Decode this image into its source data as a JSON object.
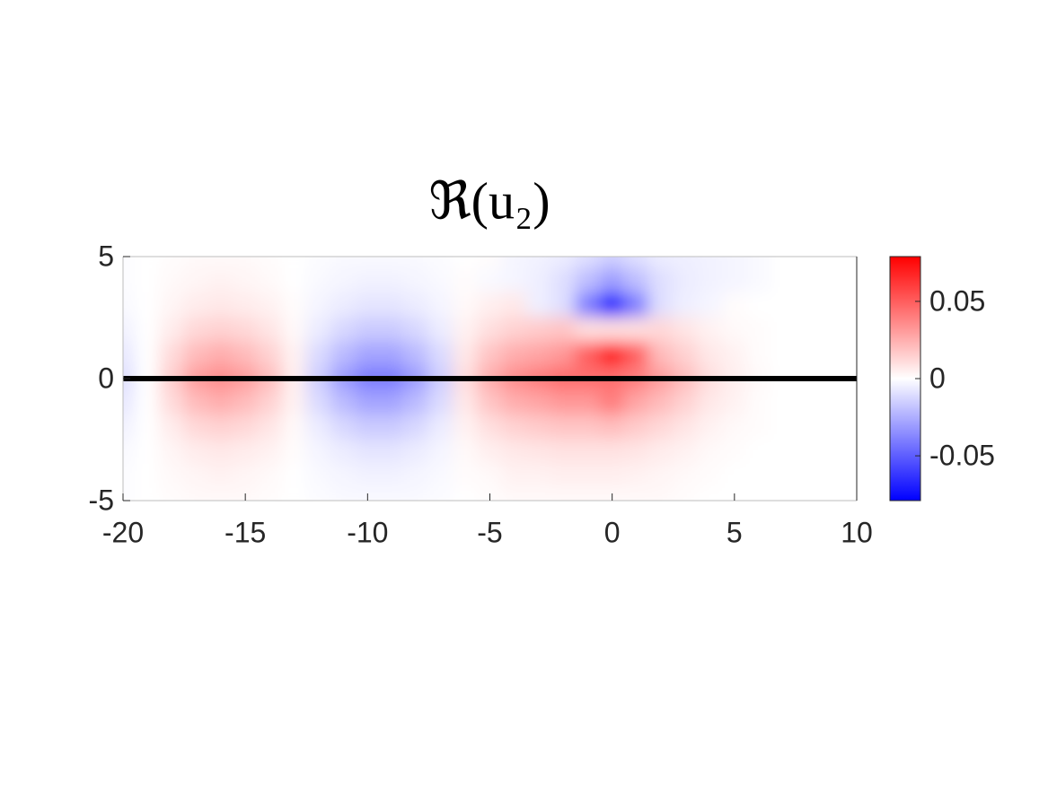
{
  "chart_data": {
    "type": "heatmap",
    "title": "ℜ(u₂)",
    "xlim": [
      -20,
      10
    ],
    "ylim": [
      -5,
      5
    ],
    "xticks": [
      -20,
      -15,
      -10,
      -5,
      0,
      5,
      10
    ],
    "yticks": [
      -5,
      0,
      5
    ],
    "clim": [
      -0.079,
      0.079
    ],
    "cticks": [
      -0.05,
      0,
      0.05
    ],
    "colormap": [
      "#0000ff",
      "#ffffff",
      "#ff0000"
    ],
    "hlines": [
      0
    ],
    "hline_color": "#000000",
    "x": [
      -20,
      -19,
      -18,
      -17,
      -16,
      -15,
      -14,
      -13,
      -12,
      -11,
      -10,
      -9,
      -8,
      -7,
      -6,
      -5,
      -4,
      -3,
      -2,
      -1,
      0,
      1,
      2,
      3,
      4,
      5,
      6,
      7,
      8,
      9,
      10
    ],
    "y": [
      5,
      4,
      3,
      2,
      1,
      0,
      -1,
      -2,
      -3,
      -4,
      -5
    ],
    "z": [
      [
        -0.001,
        0,
        0.001,
        0.002,
        0.002,
        0.002,
        0.001,
        0,
        -0.001,
        -0.002,
        -0.002,
        -0.002,
        -0.002,
        -0.001,
        0,
        0.001,
        -0.003,
        -0.004,
        -0.006,
        -0.01,
        -0.015,
        -0.01,
        -0.006,
        -0.005,
        -0.004,
        -0.003,
        -0.002,
        0,
        0,
        0,
        0
      ],
      [
        -0.001,
        0,
        0.002,
        0.003,
        0.004,
        0.003,
        0.002,
        0,
        -0.002,
        -0.003,
        -0.004,
        -0.004,
        -0.003,
        -0.002,
        0.001,
        -0.002,
        -0.003,
        -0.005,
        -0.01,
        -0.02,
        -0.03,
        -0.02,
        -0.01,
        -0.006,
        -0.004,
        -0.003,
        -0.002,
        0,
        0,
        0,
        0
      ],
      [
        -0.002,
        0,
        0.003,
        0.006,
        0.007,
        0.006,
        0.004,
        0.001,
        -0.003,
        -0.006,
        -0.008,
        -0.008,
        -0.006,
        -0.003,
        0.002,
        0.005,
        0.007,
        -0.005,
        -0.01,
        -0.04,
        -0.075,
        -0.04,
        -0.01,
        -0.005,
        -0.003,
        0.001,
        0,
        0,
        0,
        0,
        0
      ],
      [
        -0.004,
        0,
        0.006,
        0.012,
        0.014,
        0.012,
        0.008,
        0.002,
        -0.006,
        -0.012,
        -0.016,
        -0.016,
        -0.012,
        -0.006,
        0.004,
        0.01,
        0.014,
        0.016,
        0.018,
        0.01,
        0.01,
        0.01,
        0.012,
        0.008,
        0.004,
        0.002,
        0.001,
        0,
        0,
        0,
        0
      ],
      [
        -0.007,
        0,
        0.011,
        0.021,
        0.025,
        0.021,
        0.014,
        0.004,
        -0.011,
        -0.021,
        -0.028,
        -0.028,
        -0.021,
        -0.011,
        0.007,
        0.018,
        0.025,
        0.028,
        0.032,
        0.05,
        0.075,
        0.05,
        0.021,
        0.014,
        0.007,
        0.004,
        0.001,
        0,
        0,
        0,
        0
      ],
      [
        -0.01,
        0,
        0.015,
        0.03,
        0.035,
        0.03,
        0.02,
        0.005,
        -0.015,
        -0.03,
        -0.04,
        -0.04,
        -0.03,
        -0.015,
        0.01,
        0.025,
        0.035,
        0.04,
        0.045,
        0.045,
        0.045,
        0.04,
        0.03,
        0.02,
        0.01,
        0.005,
        0.002,
        0,
        0,
        0,
        0
      ],
      [
        -0.007,
        0,
        0.011,
        0.021,
        0.025,
        0.021,
        0.014,
        0.004,
        -0.011,
        -0.021,
        -0.028,
        -0.028,
        -0.021,
        -0.011,
        0.007,
        0.018,
        0.025,
        0.028,
        0.032,
        0.032,
        0.04,
        0.028,
        0.021,
        0.014,
        0.007,
        0.004,
        0.001,
        0,
        0,
        0,
        0
      ],
      [
        -0.004,
        0,
        0.006,
        0.012,
        0.014,
        0.012,
        0.008,
        0.002,
        -0.006,
        -0.012,
        -0.016,
        -0.016,
        -0.012,
        -0.006,
        0.004,
        0.01,
        0.014,
        0.016,
        0.018,
        0.018,
        0.02,
        0.016,
        0.012,
        0.008,
        0.004,
        0.002,
        0.001,
        0,
        0,
        0,
        0
      ],
      [
        -0.002,
        0,
        0.003,
        0.006,
        0.007,
        0.006,
        0.004,
        0.001,
        -0.003,
        -0.006,
        -0.008,
        -0.008,
        -0.006,
        -0.003,
        0.002,
        0.005,
        0.007,
        0.008,
        0.009,
        0.009,
        0.009,
        0.008,
        0.006,
        0.004,
        0.002,
        0.001,
        0,
        0,
        0,
        0,
        0
      ],
      [
        -0.001,
        0,
        0.002,
        0.003,
        0.004,
        0.003,
        0.002,
        0,
        -0.002,
        -0.003,
        -0.004,
        -0.004,
        -0.003,
        -0.002,
        0.001,
        0.002,
        0.004,
        0.004,
        0.005,
        0.005,
        0.005,
        0.004,
        0.003,
        0.002,
        0.001,
        0,
        0,
        0,
        0,
        0,
        0
      ],
      [
        -0.001,
        0,
        0.001,
        0.002,
        0.002,
        0.002,
        0.001,
        0,
        -0.001,
        -0.002,
        -0.002,
        -0.002,
        -0.002,
        -0.001,
        0,
        0.001,
        0.002,
        0.002,
        0.002,
        0.002,
        0.002,
        0.002,
        0.002,
        0.001,
        0,
        0,
        0,
        0,
        0,
        0,
        0
      ]
    ]
  }
}
